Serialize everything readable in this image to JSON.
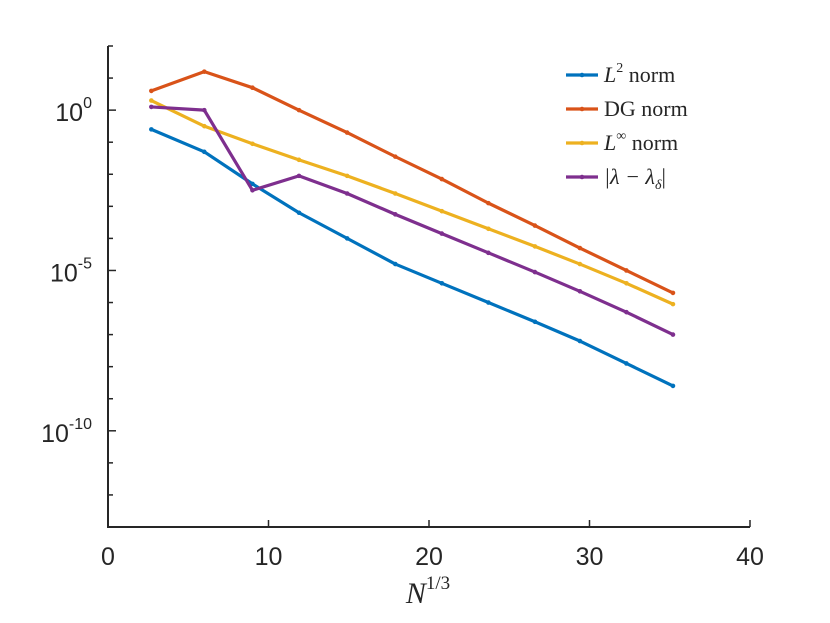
{
  "chart_data": {
    "type": "line",
    "title": "",
    "xlabel": "N^{1/3}",
    "xlabel_base": "N",
    "xlabel_exponent": "1/3",
    "ylabel": "",
    "xscale": "linear",
    "yscale": "log",
    "xlim": [
      0,
      40
    ],
    "ylim_log10": [
      -13,
      2
    ],
    "x_ticks": [
      0,
      10,
      20,
      30,
      40
    ],
    "x_tick_labels": [
      "0",
      "10",
      "20",
      "30",
      "40"
    ],
    "y_ticks_log10": [
      0,
      -5,
      -10
    ],
    "y_tick_bases": [
      "10",
      "10",
      "10"
    ],
    "y_tick_exponents": [
      "0",
      "-5",
      "-10"
    ],
    "grid": false,
    "legend_position": "top-right",
    "series": [
      {
        "name": "L^2 norm",
        "legend_base": "L",
        "legend_sup": "2",
        "legend_rest": " norm",
        "color": "#0072BD",
        "x": [
          2.7,
          6.0,
          9.0,
          11.9,
          14.9,
          17.9,
          20.8,
          23.7,
          26.6,
          29.4,
          32.3,
          35.2
        ],
        "log10_y": [
          -0.6,
          -1.3,
          -2.3,
          -3.2,
          -4.0,
          -4.8,
          -5.4,
          -6.0,
          -6.6,
          -7.2,
          -7.9,
          -8.6
        ]
      },
      {
        "name": "DG norm",
        "legend_base": "DG norm",
        "legend_sup": "",
        "legend_rest": "",
        "color": "#D95319",
        "x": [
          2.7,
          6.0,
          9.0,
          11.9,
          14.9,
          17.9,
          20.8,
          23.7,
          26.6,
          29.4,
          32.3,
          35.2
        ],
        "log10_y": [
          0.6,
          1.2,
          0.7,
          0.0,
          -0.7,
          -1.45,
          -2.15,
          -2.9,
          -3.6,
          -4.3,
          -5.0,
          -5.7
        ]
      },
      {
        "name": "L^∞ norm",
        "legend_base": "L",
        "legend_sup": "∞",
        "legend_rest": " norm",
        "color": "#EDB120",
        "x": [
          2.7,
          6.0,
          9.0,
          11.9,
          14.9,
          17.9,
          20.8,
          23.7,
          26.6,
          29.4,
          32.3,
          35.2
        ],
        "log10_y": [
          0.3,
          -0.5,
          -1.05,
          -1.55,
          -2.05,
          -2.6,
          -3.15,
          -3.7,
          -4.25,
          -4.8,
          -5.4,
          -6.05
        ]
      },
      {
        "name": "|λ − λ_δ|",
        "legend_base": "|λ − λ",
        "legend_sup": "",
        "legend_sub": "δ",
        "legend_rest": "|",
        "color": "#7E2F8E",
        "x": [
          2.7,
          6.0,
          9.0,
          11.9,
          14.9,
          17.9,
          20.8,
          23.7,
          26.6,
          29.4,
          32.3,
          35.2
        ],
        "log10_y": [
          0.1,
          0.0,
          -2.5,
          -2.05,
          -2.6,
          -3.25,
          -3.85,
          -4.45,
          -5.05,
          -5.65,
          -6.3,
          -7.0
        ]
      }
    ]
  }
}
